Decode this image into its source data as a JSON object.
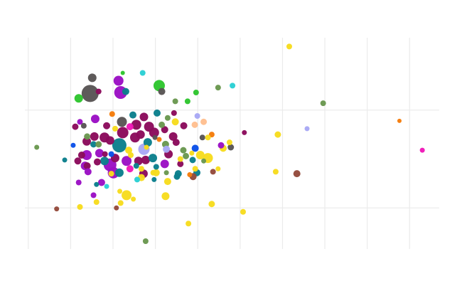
{
  "chart_data": {
    "type": "scatter",
    "variant": "bubble",
    "title": "",
    "xlabel": "",
    "ylabel": "",
    "xlim": [
      -0.08,
      9.7
    ],
    "ylim": [
      -0.42,
      1.74
    ],
    "x_gridlines": [
      0,
      1,
      2,
      3,
      4,
      5,
      6,
      7,
      8,
      9
    ],
    "y_gridlines": [
      0,
      1
    ],
    "grid": true,
    "legend": "none",
    "colors": {
      "yellow": "#f7dc1e",
      "purple": "#9b10c4",
      "maroon": "#8b0b5c",
      "teal": "#0b7f8c",
      "olive": "#6a9850",
      "green": "#2ec52e",
      "gray": "#595555",
      "cyan": "#2ad0d4",
      "lavender": "#a8a8f5",
      "peach": "#ffbf8f",
      "orange": "#f57c0a",
      "blue": "#0a4fe8",
      "brown": "#944a3c",
      "magenta": "#f019b8"
    },
    "points": [
      [
        6.16,
        1.65,
        4,
        "yellow"
      ],
      [
        6.96,
        1.07,
        4,
        "olive"
      ],
      [
        6.58,
        0.81,
        3.5,
        "lavender"
      ],
      [
        5.89,
        0.75,
        4.5,
        "yellow"
      ],
      [
        5.84,
        0.37,
        4,
        "yellow"
      ],
      [
        6.34,
        0.35,
        5,
        "brown"
      ],
      [
        8.76,
        0.89,
        3,
        "orange"
      ],
      [
        9.3,
        0.59,
        3.5,
        "magenta"
      ],
      [
        0.2,
        0.62,
        3.5,
        "olive"
      ],
      [
        1.51,
        1.33,
        6,
        "gray"
      ],
      [
        1.46,
        1.17,
        12,
        "gray"
      ],
      [
        1.19,
        1.12,
        6,
        "green"
      ],
      [
        1.66,
        1.19,
        4,
        "maroon"
      ],
      [
        2.23,
        1.38,
        3,
        "green"
      ],
      [
        2.7,
        1.38,
        4,
        "cyan"
      ],
      [
        2.13,
        1.3,
        7,
        "purple"
      ],
      [
        2.18,
        1.18,
        9,
        "purple"
      ],
      [
        2.3,
        1.19,
        5,
        "teal"
      ],
      [
        3.09,
        1.25,
        8,
        "green"
      ],
      [
        3.15,
        1.19,
        5,
        "gray"
      ],
      [
        4.48,
        1.23,
        4,
        "olive"
      ],
      [
        4.82,
        1.25,
        4,
        "cyan"
      ],
      [
        3.96,
        1.18,
        4,
        "green"
      ],
      [
        3.47,
        1.09,
        4,
        "olive"
      ],
      [
        3.76,
        1.09,
        4,
        "green"
      ],
      [
        3.44,
        0.97,
        4,
        "maroon"
      ],
      [
        3.29,
        0.92,
        4,
        "olive"
      ],
      [
        3.99,
        0.94,
        4,
        "lavender"
      ],
      [
        3.47,
        0.88,
        5,
        "yellow"
      ],
      [
        3.67,
        0.84,
        5,
        "maroon"
      ],
      [
        3.93,
        0.85,
        4.5,
        "peach"
      ],
      [
        4.14,
        0.88,
        4.5,
        "peach"
      ],
      [
        5.1,
        0.77,
        3.5,
        "maroon"
      ],
      [
        4.11,
        0.72,
        4,
        "gray"
      ],
      [
        4.33,
        0.75,
        4,
        "orange"
      ],
      [
        4.24,
        0.72,
        4,
        "yellow"
      ],
      [
        4.55,
        0.64,
        4.5,
        "purple"
      ],
      [
        4.75,
        0.67,
        4,
        "yellow"
      ],
      [
        4.6,
        0.61,
        5,
        "yellow"
      ],
      [
        4.78,
        0.62,
        4.5,
        "gray"
      ],
      [
        3.94,
        0.61,
        5,
        "blue"
      ],
      [
        3.66,
        0.59,
        4.5,
        "olive"
      ],
      [
        3.86,
        0.56,
        3.5,
        "yellow"
      ],
      [
        3.72,
        0.53,
        4.5,
        "olive"
      ],
      [
        4.06,
        0.54,
        6,
        "yellow"
      ],
      [
        4.24,
        0.51,
        7,
        "yellow"
      ],
      [
        3.88,
        0.49,
        4.5,
        "teal"
      ],
      [
        4.14,
        0.48,
        3.5,
        "olive"
      ],
      [
        3.59,
        0.45,
        4.5,
        "maroon"
      ],
      [
        3.59,
        0.5,
        4,
        "yellow"
      ],
      [
        3.94,
        0.4,
        4,
        "yellow"
      ],
      [
        4.48,
        0.4,
        3.5,
        "yellow"
      ],
      [
        3.98,
        0.36,
        5,
        "teal"
      ],
      [
        4.36,
        0.37,
        4,
        "brown"
      ],
      [
        3.81,
        0.34,
        3.5,
        "orange"
      ],
      [
        3.89,
        0.32,
        5,
        "brown"
      ],
      [
        3.54,
        0.35,
        5,
        "teal"
      ],
      [
        3.51,
        0.32,
        4.5,
        "teal"
      ],
      [
        3.26,
        0.36,
        3.5,
        "olive"
      ],
      [
        3.29,
        0.27,
        5,
        "yellow"
      ],
      [
        3.24,
        0.12,
        5.5,
        "yellow"
      ],
      [
        4.33,
        0.04,
        4.5,
        "yellow"
      ],
      [
        5.07,
        -0.04,
        4,
        "yellow"
      ],
      [
        3.78,
        -0.16,
        4,
        "yellow"
      ],
      [
        2.77,
        -0.34,
        4,
        "olive"
      ],
      [
        1.98,
        0.96,
        4,
        "orange"
      ],
      [
        1.58,
        0.91,
        6,
        "purple"
      ],
      [
        1.22,
        0.88,
        4,
        "purple"
      ],
      [
        1.11,
        0.83,
        4.5,
        "maroon"
      ],
      [
        1.31,
        0.84,
        4,
        "gray"
      ],
      [
        2.21,
        0.88,
        7,
        "gray"
      ],
      [
        2.47,
        0.95,
        5,
        "teal"
      ],
      [
        2.73,
        0.93,
        6,
        "maroon"
      ],
      [
        3.04,
        0.97,
        5,
        "teal"
      ],
      [
        2.23,
        0.77,
        8,
        "maroon"
      ],
      [
        2.55,
        0.85,
        7,
        "maroon"
      ],
      [
        2.85,
        0.83,
        7,
        "maroon"
      ],
      [
        2.97,
        0.77,
        7,
        "maroon"
      ],
      [
        3.22,
        0.8,
        5,
        "maroon"
      ],
      [
        3.15,
        0.85,
        4.5,
        "olive"
      ],
      [
        2.05,
        0.81,
        4,
        "yellow"
      ],
      [
        1.85,
        0.84,
        5,
        "maroon"
      ],
      [
        1.56,
        0.73,
        6,
        "maroon"
      ],
      [
        1.38,
        0.68,
        6,
        "maroon"
      ],
      [
        1.8,
        0.72,
        7,
        "maroon"
      ],
      [
        1.93,
        0.69,
        6,
        "maroon"
      ],
      [
        1.54,
        0.65,
        4.5,
        "teal"
      ],
      [
        1.39,
        0.73,
        4.5,
        "olive"
      ],
      [
        1.66,
        0.65,
        4.5,
        "olive"
      ],
      [
        2.52,
        0.72,
        7,
        "maroon"
      ],
      [
        2.65,
        0.75,
        6,
        "maroon"
      ],
      [
        2.82,
        0.67,
        6,
        "teal"
      ],
      [
        3.24,
        0.65,
        5,
        "olive"
      ],
      [
        3.42,
        0.73,
        6,
        "maroon"
      ],
      [
        3.49,
        0.67,
        5,
        "maroon"
      ],
      [
        3.09,
        0.7,
        3.5,
        "orange"
      ],
      [
        2.99,
        0.72,
        3.5,
        "gray"
      ],
      [
        2.79,
        0.62,
        3.5,
        "yellow"
      ],
      [
        1.06,
        0.64,
        3.5,
        "blue"
      ],
      [
        0.86,
        0.49,
        3.5,
        "teal"
      ],
      [
        1.38,
        0.54,
        7,
        "purple"
      ],
      [
        1.17,
        0.48,
        5,
        "maroon"
      ],
      [
        1.26,
        0.54,
        5,
        "maroon"
      ],
      [
        1.34,
        0.43,
        6,
        "purple"
      ],
      [
        1.39,
        0.43,
        5,
        "maroon"
      ],
      [
        1.41,
        0.37,
        5,
        "purple"
      ],
      [
        1.63,
        0.47,
        5,
        "maroon"
      ],
      [
        1.68,
        0.56,
        6,
        "purple"
      ],
      [
        1.8,
        0.48,
        6,
        "teal"
      ],
      [
        1.81,
        0.55,
        4,
        "maroon"
      ],
      [
        1.96,
        0.55,
        4,
        "blue"
      ],
      [
        1.93,
        0.44,
        9,
        "purple"
      ],
      [
        2.01,
        0.36,
        8,
        "purple"
      ],
      [
        2.15,
        0.64,
        10,
        "teal"
      ],
      [
        2.05,
        0.51,
        6,
        "maroon"
      ],
      [
        2.15,
        0.36,
        6,
        "teal"
      ],
      [
        2.32,
        0.48,
        7,
        "purple"
      ],
      [
        2.37,
        0.59,
        5,
        "yellow"
      ],
      [
        2.42,
        0.54,
        4,
        "yellow"
      ],
      [
        2.73,
        0.6,
        8,
        "lavender"
      ],
      [
        2.6,
        0.48,
        6,
        "maroon"
      ],
      [
        2.77,
        0.49,
        6,
        "maroon"
      ],
      [
        2.72,
        0.35,
        6,
        "maroon"
      ],
      [
        2.67,
        0.4,
        4,
        "yellow"
      ],
      [
        2.67,
        0.31,
        5,
        "yellow"
      ],
      [
        2.94,
        0.51,
        6,
        "teal"
      ],
      [
        3.31,
        0.55,
        6,
        "maroon"
      ],
      [
        3.22,
        0.45,
        6,
        "purple"
      ],
      [
        3.02,
        0.42,
        4,
        "teal"
      ],
      [
        3.02,
        0.36,
        5,
        "yellow"
      ],
      [
        2.95,
        0.36,
        4,
        "yellow"
      ],
      [
        1.96,
        0.35,
        4,
        "yellow"
      ],
      [
        2.57,
        0.29,
        4,
        "cyan"
      ],
      [
        2.55,
        0.43,
        4,
        "teal"
      ],
      [
        1.73,
        0.26,
        5,
        "purple"
      ],
      [
        1.19,
        0.26,
        4,
        "purple"
      ],
      [
        1.61,
        0.24,
        3.5,
        "teal"
      ],
      [
        1.85,
        0.22,
        3.5,
        "cyan"
      ],
      [
        1.54,
        0.13,
        4,
        "purple"
      ],
      [
        1.61,
        0.06,
        4,
        "yellow"
      ],
      [
        1.22,
        0.01,
        4,
        "yellow"
      ],
      [
        2.08,
        0.0,
        3.5,
        "brown"
      ],
      [
        0.67,
        -0.01,
        3.5,
        "brown"
      ],
      [
        2.32,
        0.13,
        7,
        "yellow"
      ],
      [
        2.16,
        0.17,
        3.5,
        "yellow"
      ],
      [
        2.18,
        0.05,
        4,
        "yellow"
      ],
      [
        2.48,
        0.09,
        3.5,
        "yellow"
      ],
      [
        2.97,
        0.29,
        3.5,
        "teal"
      ],
      [
        2.4,
        0.83,
        5,
        "magenta"
      ],
      [
        2.4,
        0.4,
        5,
        "magenta"
      ],
      [
        3.26,
        0.6,
        5,
        "lavender"
      ],
      [
        3.52,
        0.33,
        4,
        "teal"
      ]
    ]
  }
}
